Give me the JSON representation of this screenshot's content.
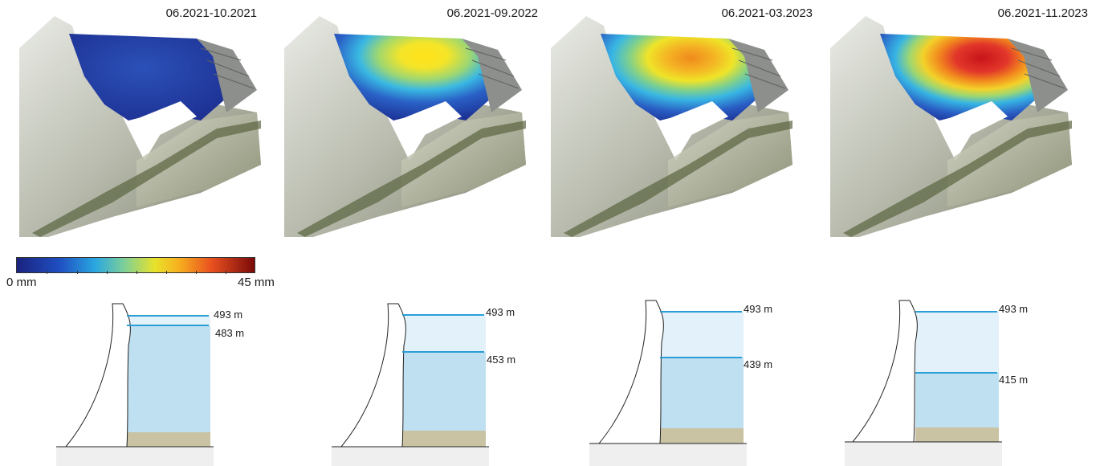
{
  "panels": [
    {
      "date": "06.2021-10.2021",
      "deformation_max_mm": 3
    },
    {
      "date": "06.2021-09.2022",
      "deformation_max_mm": 26
    },
    {
      "date": "06.2021-03.2023",
      "deformation_max_mm": 34
    },
    {
      "date": "06.2021-11.2023",
      "deformation_max_mm": 44
    }
  ],
  "colorbar": {
    "min_label": "0 mm",
    "max_label": "45 mm",
    "min": 0,
    "max": 45
  },
  "sections": [
    {
      "top_label": "493 m",
      "level_label": "483 m",
      "top_m": 493,
      "level_m": 483
    },
    {
      "top_label": "493 m",
      "level_label": "453 m",
      "top_m": 493,
      "level_m": 453
    },
    {
      "top_label": "493 m",
      "level_label": "439 m",
      "top_m": 493,
      "level_m": 439
    },
    {
      "top_label": "493 m",
      "level_label": "415 m",
      "top_m": 493,
      "level_m": 415
    }
  ],
  "colors": {
    "water_light": "#e3f1fa",
    "water": "#bfe0f1",
    "water_line": "#2a9fd6",
    "sediment": "#c9c2a3",
    "ground": "#efefef"
  }
}
